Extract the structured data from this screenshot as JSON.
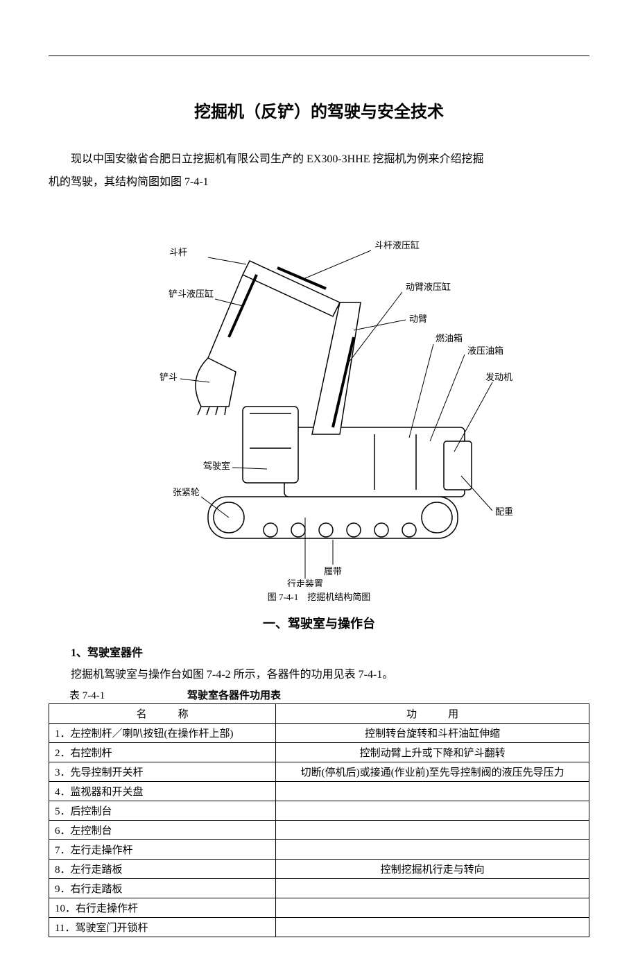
{
  "title": "挖掘机（反铲）的驾驶与安全技术",
  "intro": {
    "line1": "现以中国安徽省合肥日立挖掘机有限公司生产的 EX300-3HHE 挖掘机为例来介绍挖掘",
    "line2": "机的驾驶，其结构简图如图 7-4-1"
  },
  "figure": {
    "caption": "图 7-4-1　挖掘机结构简图",
    "labels": {
      "dougan": "斗杆",
      "dougan_cyl": "斗杆液压缸",
      "chandou_cyl": "铲斗液压缸",
      "dongbi_cyl": "动臂液压缸",
      "dongbi": "动臂",
      "ranyou": "燃油箱",
      "yeya": "液压油箱",
      "fadongji": "发动机",
      "chandou": "铲斗",
      "jiashishi": "驾驶室",
      "zhangjinlun": "张紧轮",
      "peizhong": "配重",
      "lvdai": "履带",
      "xingzou": "行走装置"
    },
    "colors": {
      "stroke": "#000000",
      "fill": "#ffffff"
    }
  },
  "section1": {
    "heading": "一、驾驶室与操作台",
    "sub1": "1、驾驶室器件",
    "body": "挖掘机驾驶室与操作台如图 7-4-2 所示，各器件的功用见表 7-4-1。"
  },
  "table": {
    "number": "表 7-4-1",
    "title": "驾驶室各器件功用表",
    "headers": {
      "name": "名　　　称",
      "func": "功　　　用"
    },
    "rows": [
      {
        "name": "1．左控制杆／喇叭按钮(在操作杆上部)",
        "func": "控制转台旋转和斗杆油缸伸缩"
      },
      {
        "name": "2．右控制杆",
        "func": "控制动臂上升或下降和铲斗翻转"
      },
      {
        "name": "3．先导控制开关杆",
        "func": "切断(停机后)或接通(作业前)至先导控制阀的液压先导压力"
      },
      {
        "name": "4．监视器和开关盘",
        "func": ""
      },
      {
        "name": "5．后控制台",
        "func": ""
      },
      {
        "name": "6．左控制台",
        "func": ""
      },
      {
        "name": "7．左行走操作杆",
        "func": ""
      },
      {
        "name": "8．左行走踏板",
        "func": "控制挖掘机行走与转向"
      },
      {
        "name": "9．右行走踏板",
        "func": ""
      },
      {
        "name": "10．右行走操作杆",
        "func": ""
      },
      {
        "name": "11．驾驶室门开锁杆",
        "func": ""
      }
    ]
  }
}
